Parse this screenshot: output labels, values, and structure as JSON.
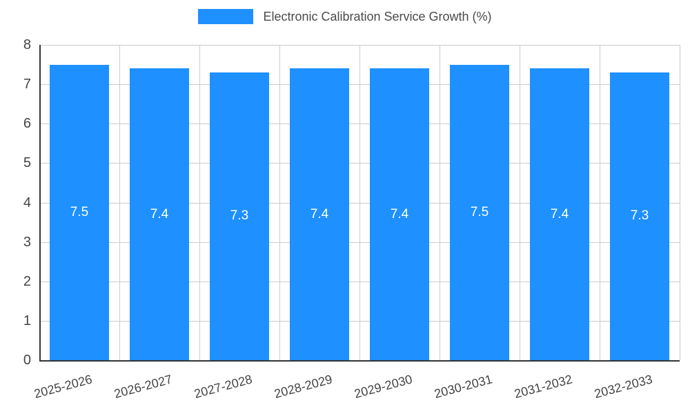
{
  "legend": {
    "label": "Electronic Calibration Service Growth (%)"
  },
  "colors": {
    "bar": "#1e90ff",
    "grid": "#cccccc",
    "axis": "#333333",
    "tick_text": "#444444",
    "value_label": "#ffffff",
    "title_text": "#4a4a4a"
  },
  "chart_data": {
    "type": "bar",
    "title": "Electronic Calibration Service Growth (%)",
    "categories": [
      "2025-2026",
      "2026-2027",
      "2027-2028",
      "2028-2029",
      "2029-2030",
      "2030-2031",
      "2031-2032",
      "2032-2033"
    ],
    "values": [
      7.5,
      7.4,
      7.3,
      7.4,
      7.4,
      7.5,
      7.4,
      7.3
    ],
    "bar_labels": [
      "7.5",
      "7.4",
      "7.3",
      "7.4",
      "7.4",
      "7.5",
      "7.4",
      "7.3"
    ],
    "xlabel": "",
    "ylabel": "",
    "ylim": [
      0,
      8
    ],
    "yticks": [
      0,
      1,
      2,
      3,
      4,
      5,
      6,
      7,
      8
    ],
    "grid": true,
    "legend_position": "top"
  }
}
